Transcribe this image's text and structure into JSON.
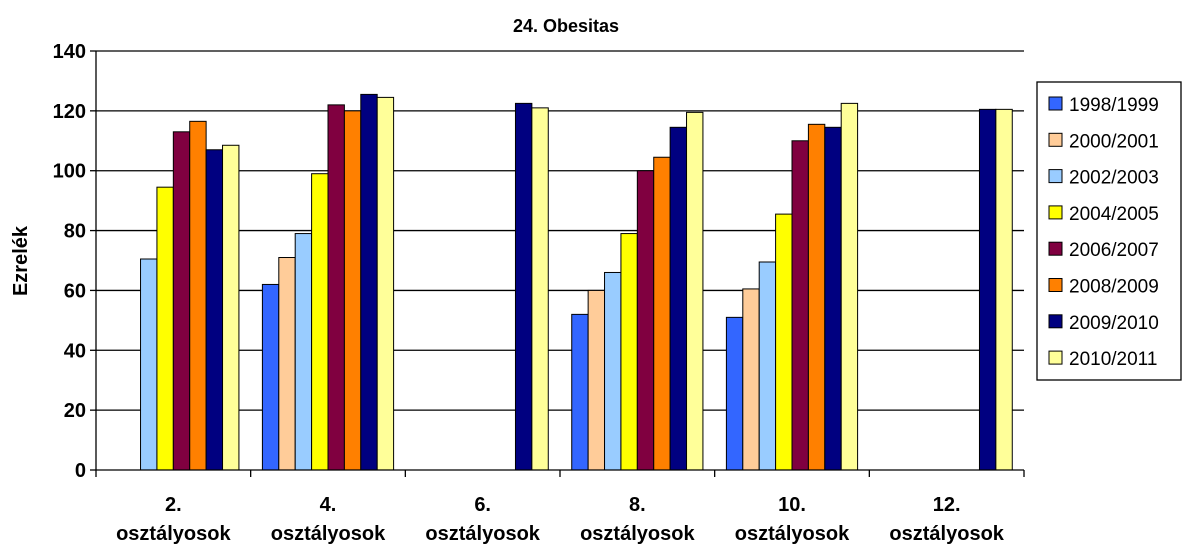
{
  "chart_data": {
    "type": "bar",
    "title": "24. Obesitas",
    "xlabel": "",
    "ylabel": "Ezrelék",
    "ylim": [
      0,
      140
    ],
    "yticks": [
      0,
      20,
      40,
      60,
      80,
      100,
      120,
      140
    ],
    "grid": true,
    "legend_position": "right",
    "categories": [
      [
        "2.",
        "osztályosok"
      ],
      [
        "4.",
        "osztályosok"
      ],
      [
        "6.",
        "osztályosok"
      ],
      [
        "8.",
        "osztályosok"
      ],
      [
        "10.",
        "osztályosok"
      ],
      [
        "12.",
        "osztályosok"
      ]
    ],
    "series": [
      {
        "name": "1998/1999",
        "color": "#3366ff",
        "values": [
          null,
          62,
          null,
          52,
          51,
          null
        ]
      },
      {
        "name": "2000/2001",
        "color": "#ffcc99",
        "values": [
          null,
          71,
          null,
          60,
          60.5,
          null
        ]
      },
      {
        "name": "2002/2003",
        "color": "#99ccff",
        "values": [
          70.5,
          79,
          null,
          66,
          69.5,
          null
        ]
      },
      {
        "name": "2004/2005",
        "color": "#ffff00",
        "values": [
          94.5,
          99,
          null,
          79,
          85.5,
          null
        ]
      },
      {
        "name": "2006/2007",
        "color": "#800040",
        "values": [
          113,
          122,
          null,
          100,
          110,
          null
        ]
      },
      {
        "name": "2008/2009",
        "color": "#ff8000",
        "values": [
          116.5,
          120,
          null,
          104.5,
          115.5,
          null
        ]
      },
      {
        "name": "2009/2010",
        "color": "#000080",
        "values": [
          107,
          125.5,
          122.5,
          114.5,
          114.5,
          120.5
        ]
      },
      {
        "name": "2010/2011",
        "color": "#ffff99",
        "values": [
          108.5,
          124.5,
          121,
          119.5,
          122.5,
          120.5
        ]
      }
    ]
  }
}
